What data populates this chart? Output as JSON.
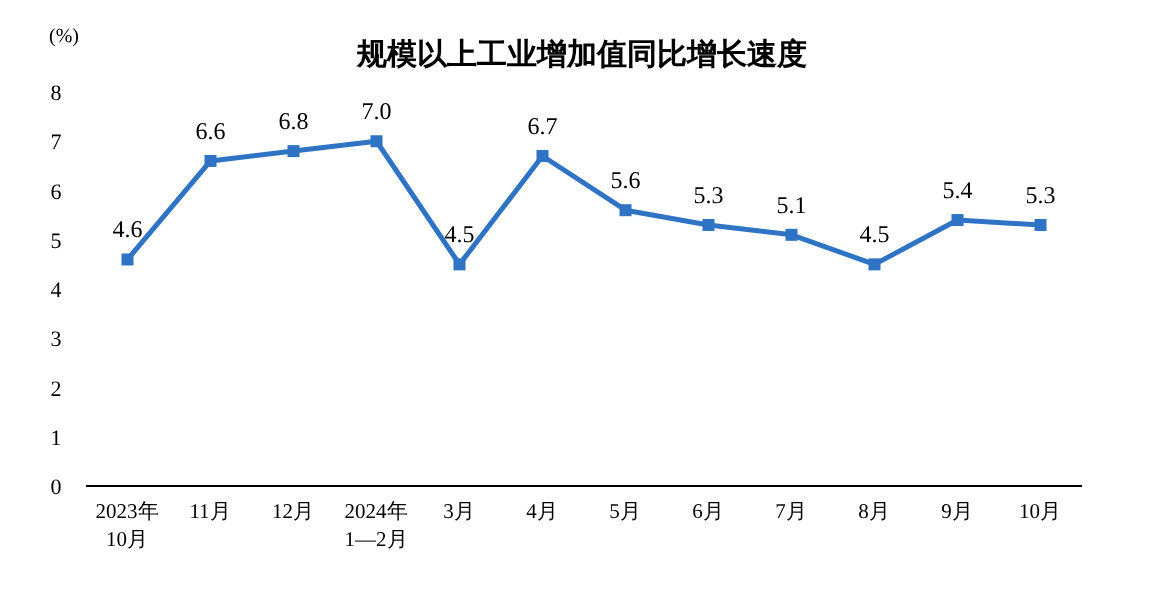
{
  "chart_data": {
    "type": "line",
    "title": "规模以上工业增加值同比增长速度",
    "ylabel": "(%)",
    "categories": [
      "2023年\n10月",
      "11月",
      "12月",
      "2024年\n1—2月",
      "3月",
      "4月",
      "5月",
      "6月",
      "7月",
      "8月",
      "9月",
      "10月"
    ],
    "values": [
      4.6,
      6.6,
      6.8,
      7.0,
      4.5,
      6.7,
      5.6,
      5.3,
      5.1,
      4.5,
      5.4,
      5.3
    ],
    "value_labels": [
      "4.6",
      "6.6",
      "6.8",
      "7.0",
      "4.5",
      "6.7",
      "5.6",
      "5.3",
      "5.1",
      "4.5",
      "5.4",
      "5.3"
    ],
    "color": "#2f74c4",
    "ylim": [
      0,
      8
    ],
    "yticks": [
      0,
      1,
      2,
      3,
      4,
      5,
      6,
      7,
      8
    ],
    "marker": "square",
    "line_style": "solid"
  }
}
